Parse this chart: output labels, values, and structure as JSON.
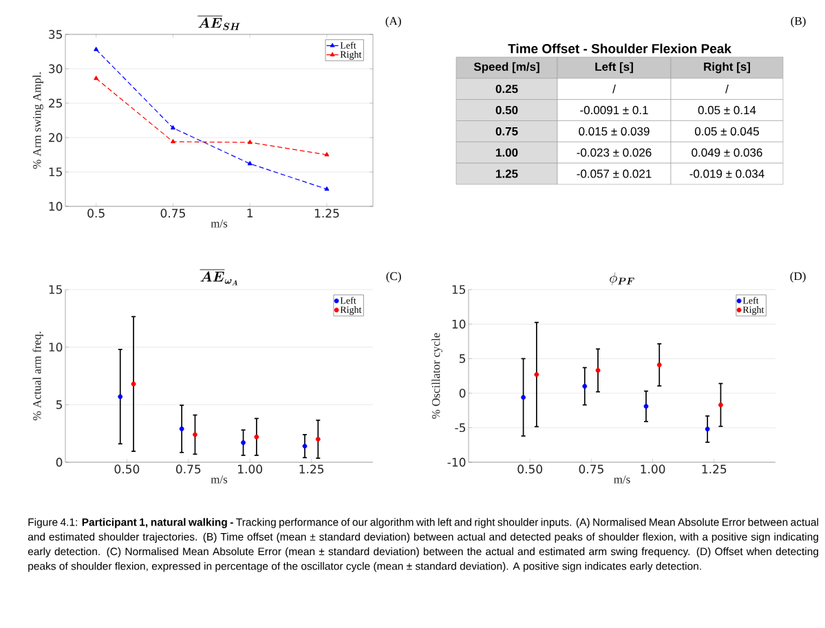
{
  "chart_data": [
    {
      "type": "line",
      "title": "\\overline{\\boldsymbol{AE}}_{\\boldsymbol{SH}}",
      "xlabel": "m/s",
      "ylabel": "% Arm swing Ampl.",
      "annotations": [
        "(A)"
      ],
      "x": [
        0.5,
        0.75,
        1,
        1.25
      ],
      "xlim": [
        0.4,
        1.4
      ],
      "xticks": [
        0.5,
        0.75,
        1,
        1.25
      ],
      "ylim": [
        10,
        35
      ],
      "yticks": [
        10,
        15,
        20,
        25,
        30,
        35
      ],
      "grid": "y",
      "legend": "top right",
      "marker": "triangle",
      "line_style": "dashed",
      "series": [
        {
          "name": "Left",
          "color": "#0000ff",
          "values": [
            32.8,
            21.4,
            16.2,
            12.5
          ]
        },
        {
          "name": "Right",
          "color": "#ff0000",
          "values": [
            28.6,
            19.4,
            19.3,
            17.5
          ]
        }
      ]
    },
    {
      "type": "heatmap",
      "title": "Time Offset - Shoulder Flexion Peak",
      "annotations": [
        "(B)"
      ],
      "ylabel": "Speed [m/s]",
      "categories": [
        "Left [s]",
        "Right [s]"
      ],
      "y_categories": [
        "0.25",
        "0.50",
        "0.75",
        "1.00",
        "1.25"
      ],
      "cells": [
        [
          null,
          null
        ],
        [
          null,
          null
        ],
        [
          null,
          null
        ],
        [
          null,
          null
        ],
        [
          null,
          null
        ]
      ],
      "cell_labels": [
        [
          "/",
          "/"
        ],
        [
          "-0.0091 ± 0.1",
          "0.05 ± 0.14"
        ],
        [
          "0.015 ± 0.039",
          "0.05 ± 0.045"
        ],
        [
          "-0.023 ± 0.026",
          "0.049 ± 0.036"
        ],
        [
          "-0.057 ± 0.021",
          "-0.019 ± 0.034"
        ]
      ]
    },
    {
      "type": "scatter",
      "title": "\\overline{\\boldsymbol{AE}}_{\\boldsymbol{\\omega_A}}",
      "xlabel": "m/s",
      "ylabel": "% Actual arm freq.",
      "annotations": [
        "(C)"
      ],
      "xlim": [
        0.25,
        1.5
      ],
      "xticks": [
        {
          "value": 0.5,
          "label": "0.50"
        },
        {
          "value": 0.75,
          "label": "0.75"
        },
        {
          "value": 1,
          "label": "1.00"
        },
        {
          "value": 1.25,
          "label": "1.25"
        }
      ],
      "ylim": [
        0,
        15
      ],
      "yticks": [
        0,
        5,
        10,
        15
      ],
      "grid": "y",
      "legend": "top right",
      "marker": "circle",
      "series": [
        {
          "name": "Left",
          "color": "#0000ff",
          "x": [
            0.473,
            0.723,
            0.973,
            1.223
          ],
          "values": [
            5.7,
            2.9,
            1.7,
            1.4
          ],
          "errors": [
            4.1,
            2.05,
            1.1,
            1.0
          ]
        },
        {
          "name": "Right",
          "color": "#ff0000",
          "x": [
            0.527,
            0.777,
            1.027,
            1.277
          ],
          "values": [
            6.8,
            2.4,
            2.2,
            2.0
          ],
          "errors": [
            5.85,
            1.7,
            1.6,
            1.65
          ]
        }
      ]
    },
    {
      "type": "scatter",
      "title": "\\phi_{\\boldsymbol{PF}}",
      "xlabel": "m/s",
      "ylabel": "% Oscillator cycle",
      "annotations": [
        "(D)",
        "Figure 4.1: **Participant 1, natural walking -** Tracking performance of our algorithm with left and right shoulder inputs. (A) Normalised Mean Absolute Error between actual and estimated shoulder trajectories. (B) Time offset (mean ± standard deviation) between actual and detected peaks of shoulder flexion, with a positive sign indicating early detection. (C) Normalised Mean Absolute Error (mean ± standard deviation) between the actual and estimated arm swing frequency. (D) Offset when detecting peaks of shoulder flexion, expressed in percentage of the oscillator cycle (mean ± standard deviation). A positive sign indicates early detection."
      ],
      "xlim": [
        0.25,
        1.5
      ],
      "xticks": [
        {
          "value": 0.5,
          "label": "0.50"
        },
        {
          "value": 0.75,
          "label": "0.75"
        },
        {
          "value": 1,
          "label": "1.00"
        },
        {
          "value": 1.25,
          "label": "1.25"
        }
      ],
      "ylim": [
        -10,
        15
      ],
      "yticks": [
        -10,
        -5,
        0,
        5,
        10,
        15
      ],
      "grid": "y",
      "legend": "top right",
      "marker": "circle",
      "series": [
        {
          "name": "Left",
          "color": "#0000ff",
          "x": [
            0.473,
            0.723,
            0.973,
            1.223
          ],
          "values": [
            -0.6,
            1.0,
            -1.9,
            -5.2
          ],
          "errors": [
            5.6,
            2.7,
            2.2,
            1.9
          ]
        },
        {
          "name": "Right",
          "color": "#ff0000",
          "x": [
            0.527,
            0.777,
            1.027,
            1.277
          ],
          "values": [
            2.7,
            3.3,
            4.1,
            -1.7
          ],
          "errors": [
            7.55,
            3.1,
            3.05,
            3.1
          ]
        }
      ]
    }
  ]
}
